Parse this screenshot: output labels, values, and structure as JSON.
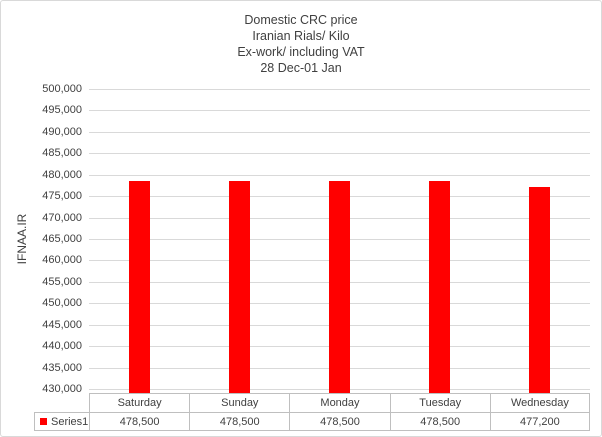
{
  "chart_data": {
    "type": "bar",
    "title_lines": [
      "Domestic CRC price",
      "Iranian Rials/ Kilo",
      "Ex-work/ including VAT",
      "28 Dec-01 Jan"
    ],
    "ylabel": "IFNAA.IR",
    "xlabel": "",
    "categories": [
      "Saturday",
      "Sunday",
      "Monday",
      "Tuesday",
      "Wednesday"
    ],
    "series": [
      {
        "name": "Series1",
        "values": [
          478500,
          478500,
          478500,
          478500,
          477200
        ]
      }
    ],
    "table_values": [
      "478,500",
      "478,500",
      "478,500",
      "478,500",
      "477,200"
    ],
    "ylim": [
      430000,
      500000
    ],
    "ytick_step": 5000,
    "ytick_labels": [
      "500,000",
      "495,000",
      "490,000",
      "485,000",
      "480,000",
      "475,000",
      "470,000",
      "465,000",
      "460,000",
      "455,000",
      "450,000",
      "445,000",
      "440,000",
      "435,000",
      "430,000"
    ],
    "grid": true,
    "legend_position": "bottom-left-table",
    "bar_color": "#FF0000",
    "grid_color": "#D9D9D9",
    "text_color": "#404040",
    "table_border_color": "#BFBFBF"
  }
}
